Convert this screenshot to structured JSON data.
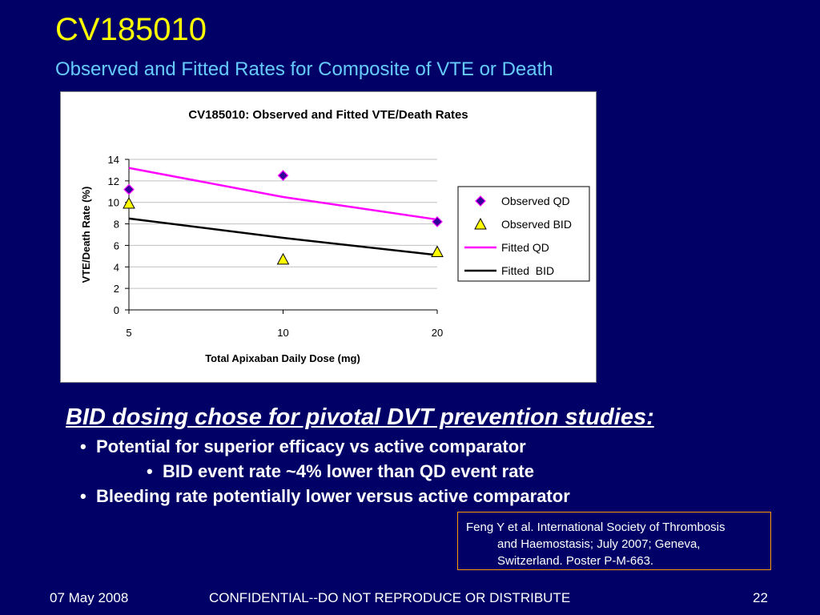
{
  "slide": {
    "title": "CV185010",
    "subtitle": "Observed and Fitted Rates for Composite of VTE or Death"
  },
  "colors": {
    "background": "#000066",
    "title": "#ffff00",
    "subtitle": "#66ccff",
    "qd_series": "#ff00ff",
    "qd_marker": "#330099",
    "bid_series": "#000000",
    "bid_marker": "#ffff00",
    "citation_border": "#ff9900"
  },
  "chart_data": {
    "type": "line",
    "title": "CV185010: Observed and Fitted VTE/Death Rates",
    "xlabel": "Total Apixaban Daily Dose (mg)",
    "ylabel": "VTE/Death Rate (%)",
    "x_categories": [
      "5",
      "10",
      "20"
    ],
    "ylim": [
      0,
      14
    ],
    "yticks": [
      0,
      2,
      4,
      6,
      8,
      10,
      12,
      14
    ],
    "grid": true,
    "legend_position": "right",
    "series": [
      {
        "name": "Observed QD",
        "kind": "scatter",
        "marker": "diamond",
        "values": [
          11.2,
          12.5,
          8.2
        ]
      },
      {
        "name": "Observed BID",
        "kind": "scatter",
        "marker": "triangle",
        "values": [
          9.9,
          4.7,
          5.4
        ]
      },
      {
        "name": "Fitted QD",
        "kind": "line",
        "values": [
          13.2,
          10.5,
          8.4
        ]
      },
      {
        "name": "Fitted  BID",
        "kind": "line",
        "values": [
          8.5,
          6.7,
          5.1
        ]
      }
    ]
  },
  "body": {
    "heading": "BID dosing chose for pivotal DVT prevention studies:",
    "bullets": [
      {
        "text": "Potential for superior efficacy vs active comparator",
        "level": 1
      },
      {
        "text": "BID event rate ~4% lower than QD event rate",
        "level": 2
      },
      {
        "text": "Bleeding rate potentially lower versus active comparator",
        "level": 1
      }
    ],
    "bullet_char": "•"
  },
  "citation": {
    "lines": [
      "Feng Y et al. International Society of Thrombosis",
      "and Haemostasis; July 2007; Geneva,",
      "Switzerland. Poster P-M-663."
    ]
  },
  "footer": {
    "date": "07 May 2008",
    "confidential": "CONFIDENTIAL--DO NOT REPRODUCE OR DISTRIBUTE",
    "page": "22"
  }
}
